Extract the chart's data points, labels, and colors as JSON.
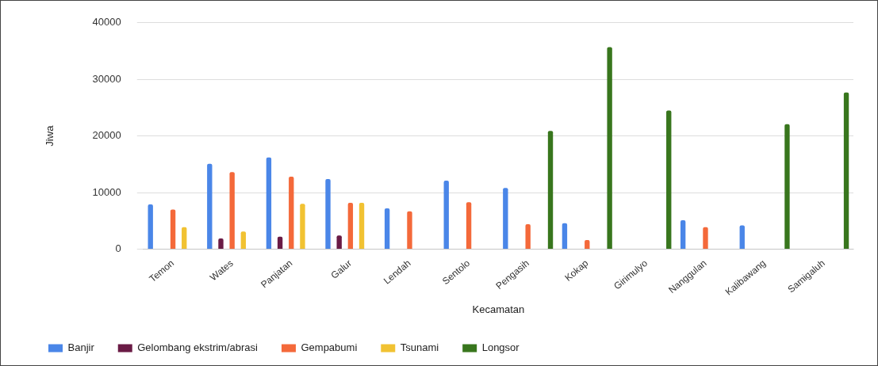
{
  "chart_data": {
    "type": "bar",
    "xlabel": "Kecamatan",
    "ylabel": "Jiwa",
    "categories": [
      "Temon",
      "Wates",
      "Panjatan",
      "Galur",
      "Lendah",
      "Sentolo",
      "Pengasih",
      "Kokap",
      "Girimulyo",
      "Nanggulan",
      "Kalibawang",
      "Samigaluh"
    ],
    "series": [
      {
        "name": "Banjir",
        "color": "#4a86e8",
        "values": [
          7900,
          15100,
          16200,
          12400,
          7200,
          12100,
          10800,
          4600,
          null,
          5100,
          4200,
          null
        ]
      },
      {
        "name": "Gelombang ekstrim/abrasi",
        "color": "#6a1b45",
        "values": [
          null,
          1900,
          2200,
          2400,
          null,
          null,
          null,
          null,
          null,
          null,
          null,
          null
        ]
      },
      {
        "name": "Gempabumi",
        "color": "#f4693a",
        "values": [
          7000,
          13600,
          12800,
          8200,
          6700,
          8300,
          4400,
          1600,
          null,
          3900,
          null,
          null
        ]
      },
      {
        "name": "Tsunami",
        "color": "#f1c232",
        "values": [
          3900,
          3100,
          8000,
          8200,
          null,
          null,
          null,
          null,
          null,
          null,
          null,
          null
        ]
      },
      {
        "name": "Longsor",
        "color": "#38761d",
        "values": [
          null,
          null,
          null,
          null,
          null,
          null,
          20900,
          35700,
          24500,
          null,
          22100,
          27700
        ]
      }
    ],
    "ylim": [
      0,
      40000
    ],
    "yticks": [
      0,
      10000,
      20000,
      30000,
      40000
    ],
    "grid": "y",
    "legend": "bottom"
  }
}
